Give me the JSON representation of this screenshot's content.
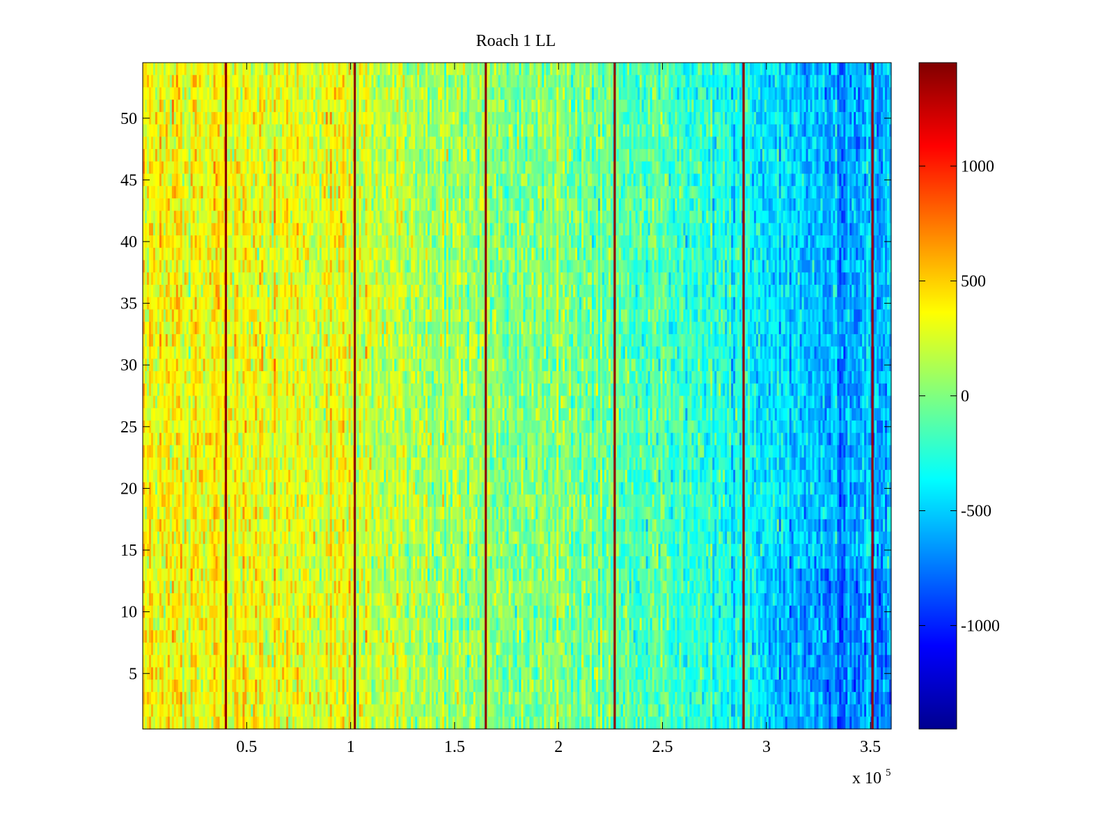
{
  "chart_data": {
    "type": "heatmap",
    "title": "Roach 1 LL",
    "xlabel": "",
    "ylabel": "",
    "x_exponent_label": "x 10",
    "x_exponent_power": "5",
    "xlim": [
      0,
      3.6
    ],
    "ylim": [
      0.5,
      54.5
    ],
    "x_ticks": [
      0.5,
      1,
      1.5,
      2,
      2.5,
      3,
      3.5
    ],
    "x_tick_labels": [
      "0.5",
      "1",
      "1.5",
      "2",
      "2.5",
      "3",
      "3.5"
    ],
    "y_ticks": [
      5,
      10,
      15,
      20,
      25,
      30,
      35,
      40,
      45,
      50
    ],
    "y_tick_labels": [
      "5",
      "10",
      "15",
      "20",
      "25",
      "30",
      "35",
      "40",
      "45",
      "50"
    ],
    "rows": 54,
    "colormap": "jet",
    "clim": [
      -1450,
      1450
    ],
    "colorbar_ticks": [
      1000,
      500,
      0,
      -500,
      -1000
    ],
    "colorbar_tick_labels": [
      "1000",
      "500",
      "0",
      "-500",
      "-1000"
    ],
    "trend": {
      "x": [
        0.0,
        0.5,
        1.0,
        1.5,
        2.0,
        2.5,
        3.0,
        3.3,
        3.6
      ],
      "mean_value": [
        350,
        330,
        250,
        100,
        0,
        -150,
        -400,
        -600,
        -550
      ]
    },
    "noise_amplitude": 260,
    "spike_columns_x": [
      0.4,
      1.02,
      1.65,
      2.27,
      2.89,
      3.51
    ],
    "spike_value": 1400
  }
}
